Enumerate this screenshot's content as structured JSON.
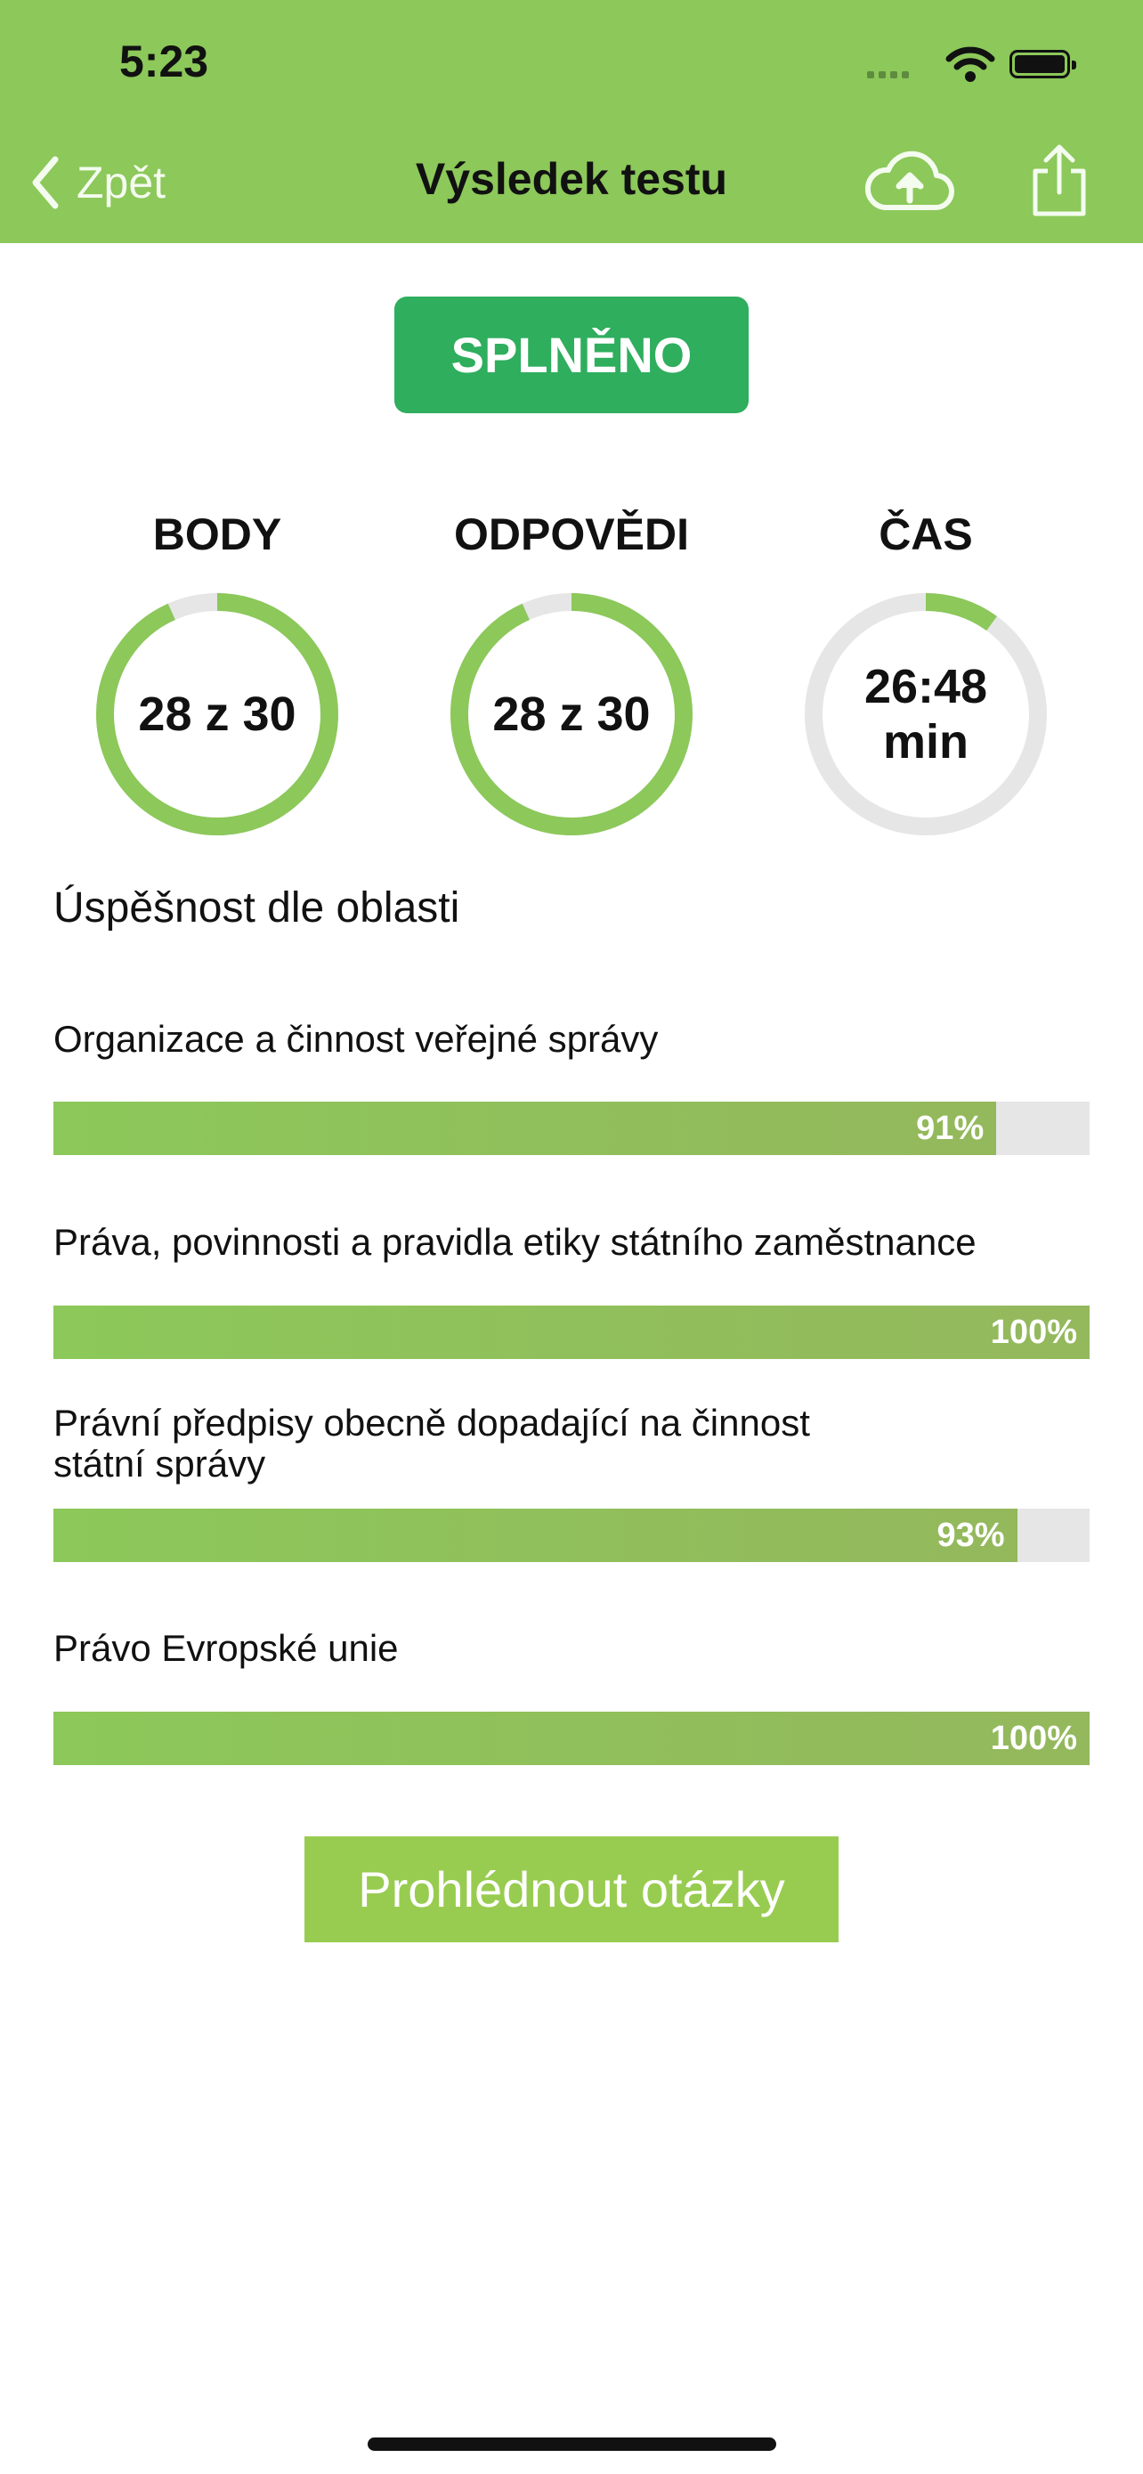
{
  "status_bar": {
    "time": "5:23"
  },
  "nav": {
    "back_label": "Zpět",
    "title": "Výsledek testu",
    "color": "#8cc85a"
  },
  "result": {
    "badge": "SPLNĚNO",
    "color": "#2fae5e"
  },
  "stats": [
    {
      "label": "BODY",
      "value": "28 z 30",
      "fraction": 0.933
    },
    {
      "label": "ODPOVĚDI",
      "value": "28 z 30",
      "fraction": 0.933
    },
    {
      "label": "ČAS",
      "value_line1": "26:48",
      "value_line2": "min",
      "fraction": 0.1
    }
  ],
  "areas": {
    "title": "Úspěšnost dle oblasti",
    "items": [
      {
        "label": "Organizace a činnost veřejné správy",
        "percent_label": "91%",
        "percent": 91
      },
      {
        "label": "Práva, povinnosti a pravidla etiky státního zaměstnance",
        "percent_label": "100%",
        "percent": 100
      },
      {
        "label_line1": "Právní předpisy obecně dopadající na činnost",
        "label_line2": "státní správy",
        "percent_label": "93%",
        "percent": 93
      },
      {
        "label": "Právo Evropské unie",
        "percent_label": "100%",
        "percent": 100
      }
    ]
  },
  "review_button": {
    "label": "Prohlédnout otázky"
  },
  "icons": {
    "back": "chevron-left-icon",
    "upload": "cloud-upload-icon",
    "share": "share-icon"
  },
  "colors": {
    "ring_active": "#8cc85a",
    "ring_track": "#e6e6e6",
    "bar_fill": "#8cc85a",
    "button": "#98cc50"
  }
}
